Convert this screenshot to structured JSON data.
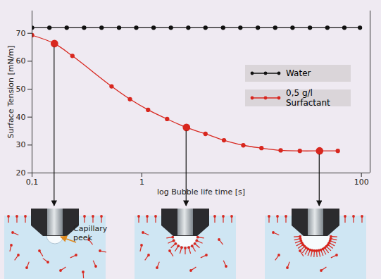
{
  "chart_data": {
    "type": "line",
    "x_label": "log Bubble life time [s]",
    "y_label": "Surface Tension [mN/m]",
    "log": "x",
    "grid": false,
    "legend": "upper right",
    "xlim": [
      0.1,
      120
    ],
    "ylim": [
      20,
      78
    ],
    "xticks": [
      {
        "value": 0.1,
        "label": "0,1"
      },
      1,
      100
    ],
    "yticks": [
      20,
      30,
      40,
      50,
      60,
      70
    ],
    "series": [
      {
        "name": "Water",
        "color": "#111111",
        "marker": "circle",
        "line_style": "solid",
        "x": [
          0.1,
          0.144,
          0.207,
          0.298,
          0.43,
          0.62,
          0.89,
          1.28,
          1.84,
          2.65,
          3.8,
          5.5,
          7.9,
          11.4,
          16.4,
          23.6,
          34,
          49,
          70,
          97
        ],
        "values": [
          72,
          72,
          72,
          72,
          72,
          72,
          72,
          72,
          72,
          72,
          72,
          72,
          72,
          72,
          72,
          72,
          72,
          72,
          72,
          72
        ]
      },
      {
        "name": "0,5 g/l Surfactant",
        "color": "#d8271f",
        "marker": "circle",
        "line_style": "solid",
        "x": [
          0.1,
          0.16,
          0.233,
          0.53,
          0.78,
          1.14,
          1.7,
          2.55,
          3.8,
          5.6,
          8.4,
          12.3,
          18.4,
          27.5,
          41.6,
          61
        ],
        "values": [
          69.3,
          66.3,
          61.9,
          51,
          46.4,
          42.6,
          39.3,
          36.3,
          34,
          31.7,
          29.9,
          28.9,
          28.1,
          27.9,
          27.9,
          27.9
        ],
        "highlight_x": [
          0.16,
          2.55,
          41.6
        ]
      }
    ],
    "annotations": [
      {
        "text": "Capillary peek"
      }
    ]
  }
}
